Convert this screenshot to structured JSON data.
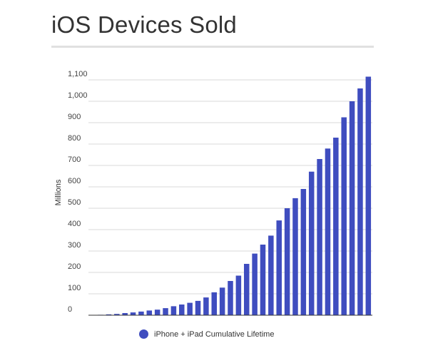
{
  "title": "iOS Devices Sold",
  "chart_data": {
    "type": "bar",
    "ylabel": "Millions",
    "ylim": [
      0,
      1100
    ],
    "yticks": [
      0,
      100,
      200,
      300,
      400,
      500,
      600,
      700,
      800,
      900,
      1000,
      1100
    ],
    "grid": true,
    "legend_position": "bottom",
    "series": [
      {
        "name": "iPhone + iPad Cumulative Lifetime",
        "color": "#3f4dbf",
        "values": [
          1,
          2,
          4,
          6,
          10,
          13,
          17,
          22,
          26,
          33,
          42,
          50,
          58,
          67,
          83,
          107,
          129,
          160,
          185,
          240,
          288,
          330,
          372,
          443,
          500,
          547,
          590,
          671,
          730,
          779,
          830,
          925,
          1000,
          1060,
          1115
        ]
      }
    ]
  }
}
